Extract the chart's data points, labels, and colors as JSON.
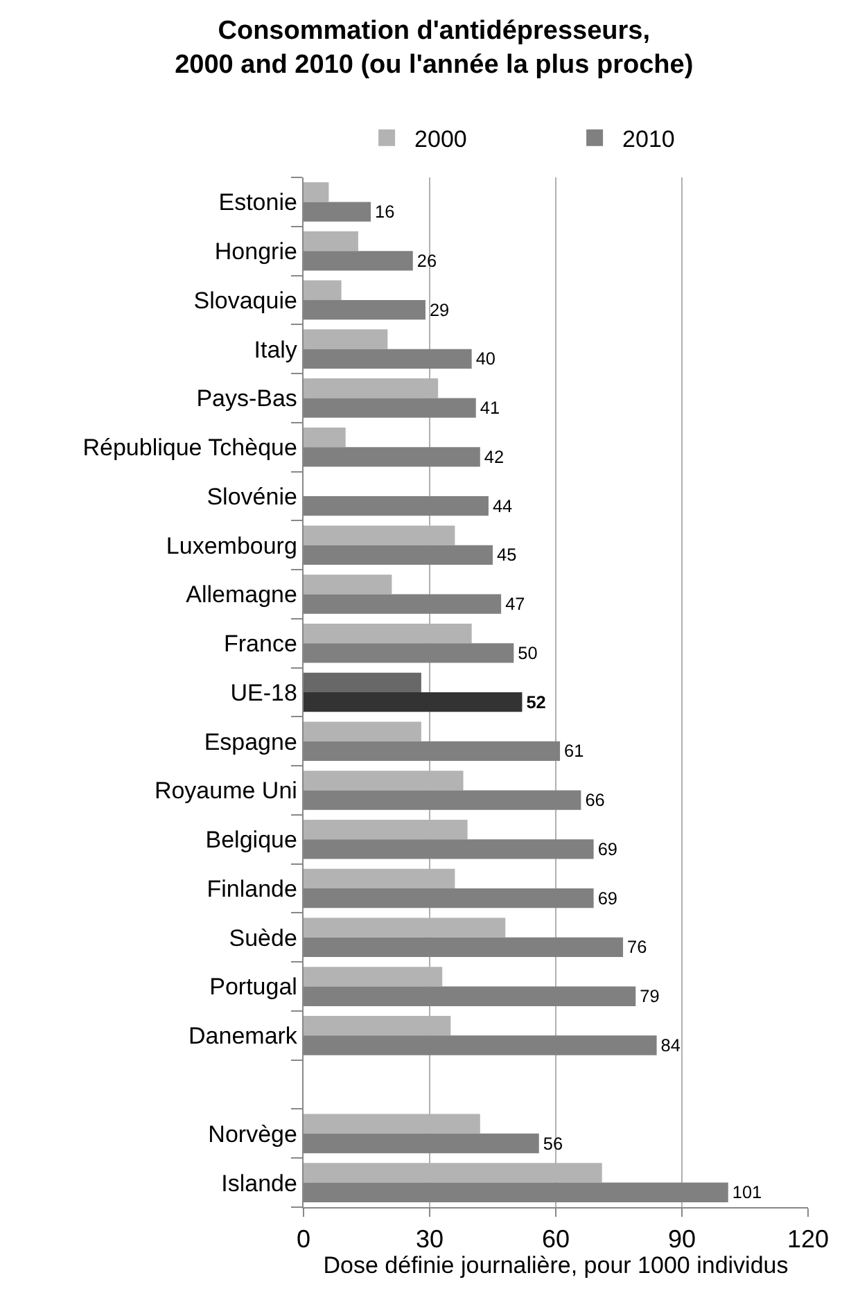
{
  "chart_data": {
    "type": "bar",
    "orientation": "horizontal",
    "title": "Consommation d'antidépresseurs,\n2000 and 2010 (ou l'année la plus proche)",
    "xlabel": "Dose définie journalière, pour 1000 individus",
    "categories": [
      "Estonie",
      "Hongrie",
      "Slovaquie",
      "Italy",
      "Pays-Bas",
      "République Tchèque",
      "Slovénie",
      "Luxembourg",
      "Allemagne",
      "France",
      "UE-18",
      "Espagne",
      "Royaume Uni",
      "Belgique",
      "Finlande",
      "Suède",
      "Portugal",
      "Danemark",
      null,
      "Norvège",
      "Islande"
    ],
    "series": [
      {
        "name": "2000",
        "color": "#b3b3b3",
        "colors": [
          "#b3b3b3",
          "#b3b3b3",
          "#b3b3b3",
          "#b3b3b3",
          "#b3b3b3",
          "#b3b3b3",
          "#b3b3b3",
          "#b3b3b3",
          "#b3b3b3",
          "#b3b3b3",
          "#686868",
          "#b3b3b3",
          "#b3b3b3",
          "#b3b3b3",
          "#b3b3b3",
          "#b3b3b3",
          "#b3b3b3",
          "#b3b3b3",
          "#b3b3b3",
          "#b3b3b3",
          "#b3b3b3"
        ],
        "values": [
          6,
          13,
          9,
          20,
          32,
          10,
          null,
          36,
          21,
          40,
          28,
          28,
          38,
          39,
          36,
          48,
          33,
          35,
          null,
          42,
          71
        ]
      },
      {
        "name": "2010",
        "color": "#808080",
        "colors": [
          "#808080",
          "#808080",
          "#808080",
          "#808080",
          "#808080",
          "#808080",
          "#808080",
          "#808080",
          "#808080",
          "#808080",
          "#333333",
          "#808080",
          "#808080",
          "#808080",
          "#808080",
          "#808080",
          "#808080",
          "#808080",
          "#808080",
          "#808080",
          "#808080"
        ],
        "values": [
          16,
          26,
          29,
          40,
          41,
          42,
          44,
          45,
          47,
          50,
          52,
          61,
          66,
          69,
          69,
          76,
          79,
          84,
          null,
          56,
          101
        ],
        "value_labels": [
          "16",
          "26",
          "29",
          "40",
          "41",
          "42",
          "44",
          "45",
          "47",
          "50",
          "52",
          "61",
          "66",
          "69",
          "69",
          "76",
          "79",
          "84",
          null,
          "56",
          "101"
        ]
      }
    ],
    "xlim": [
      0,
      120
    ],
    "xticks": [
      0,
      30,
      60,
      90,
      120
    ],
    "grid": "x",
    "legend": "top"
  }
}
